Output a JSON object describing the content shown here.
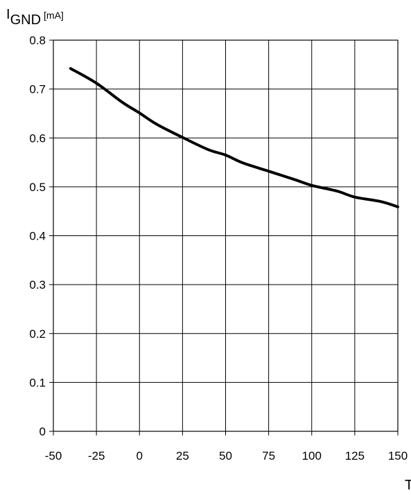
{
  "chart_data": {
    "type": "line",
    "ylabel_main": "I",
    "ylabel_sub": "GND",
    "ylabel_unit": "[mA]",
    "xlabel": "T",
    "xlim": [
      -50,
      150
    ],
    "ylim": [
      0,
      0.8
    ],
    "x_ticks": [
      -50,
      -25,
      0,
      25,
      50,
      75,
      100,
      125,
      150
    ],
    "x_tick_labels": [
      "-50",
      "-25",
      "0",
      "25",
      "50",
      "75",
      "100",
      "125",
      "150"
    ],
    "y_ticks": [
      0,
      0.1,
      0.2,
      0.3,
      0.4,
      0.5,
      0.6,
      0.7,
      0.8
    ],
    "y_tick_labels": [
      "0",
      "0.1",
      "0.2",
      "0.3",
      "0.4",
      "0.5",
      "0.6",
      "0.7",
      "0.8"
    ],
    "grid": true,
    "series": [
      {
        "color": "#000000",
        "x": [
          -40,
          -25,
          -10,
          0,
          10,
          25,
          40,
          50,
          60,
          75,
          90,
          100,
          115,
          125,
          140,
          150
        ],
        "y": [
          0.742,
          0.712,
          0.673,
          0.651,
          0.628,
          0.601,
          0.576,
          0.565,
          0.549,
          0.532,
          0.515,
          0.503,
          0.491,
          0.479,
          0.47,
          0.459
        ]
      }
    ]
  }
}
